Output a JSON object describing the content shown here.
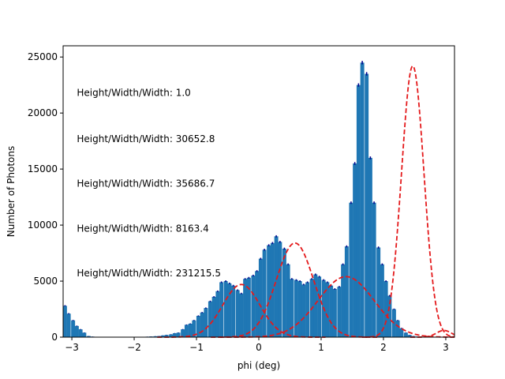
{
  "chart_data": {
    "type": "bar",
    "title": "",
    "xlabel": "phi (deg)",
    "ylabel": "Number of Photons",
    "xlim": [
      -3.14,
      3.14
    ],
    "ylim": [
      0,
      26000
    ],
    "xticks": [
      -3,
      -2,
      -1,
      0,
      1,
      2,
      3
    ],
    "yticks": [
      0,
      5000,
      10000,
      15000,
      20000,
      25000
    ],
    "xtick_labels": [
      "−3",
      "−2",
      "−1",
      "0",
      "1",
      "2",
      "3"
    ],
    "ytick_labels": [
      "0",
      "5000",
      "10000",
      "15000",
      "20000",
      "25000"
    ],
    "grid": false,
    "bar_color": "#1f77b4",
    "errorbar_color": "#00008b",
    "fit_color": "#e41a1c",
    "histogram": {
      "bin_width": 0.0628,
      "bin_centers": [
        -3.11,
        -3.05,
        -2.98,
        -2.92,
        -2.86,
        -2.8,
        -2.73,
        -2.67,
        -2.61,
        -2.55,
        -2.48,
        -2.42,
        -2.36,
        -2.29,
        -2.23,
        -2.17,
        -2.1,
        -2.04,
        -1.98,
        -1.92,
        -1.85,
        -1.79,
        -1.73,
        -1.66,
        -1.6,
        -1.54,
        -1.48,
        -1.41,
        -1.35,
        -1.29,
        -1.22,
        -1.16,
        -1.1,
        -1.04,
        -0.97,
        -0.91,
        -0.85,
        -0.78,
        -0.72,
        -0.66,
        -0.6,
        -0.53,
        -0.47,
        -0.41,
        -0.34,
        -0.28,
        -0.22,
        -0.16,
        -0.09,
        -0.03,
        0.03,
        0.09,
        0.16,
        0.22,
        0.28,
        0.34,
        0.41,
        0.47,
        0.53,
        0.6,
        0.66,
        0.72,
        0.78,
        0.85,
        0.91,
        0.97,
        1.04,
        1.1,
        1.16,
        1.22,
        1.29,
        1.35,
        1.41,
        1.48,
        1.54,
        1.6,
        1.66,
        1.73,
        1.79,
        1.85,
        1.92,
        1.98,
        2.04,
        2.1,
        2.17,
        2.23,
        2.29,
        2.36,
        2.42,
        2.48,
        2.55,
        2.61,
        2.67,
        2.73,
        2.8,
        2.86,
        2.92,
        2.98,
        3.05,
        3.11
      ],
      "counts": [
        2800,
        2100,
        1500,
        1000,
        700,
        400,
        100,
        50,
        30,
        20,
        15,
        10,
        10,
        10,
        10,
        10,
        10,
        10,
        10,
        20,
        30,
        40,
        60,
        80,
        100,
        150,
        200,
        250,
        350,
        400,
        700,
        1100,
        1200,
        1500,
        1900,
        2200,
        2600,
        3200,
        3600,
        4100,
        4900,
        5000,
        4800,
        4600,
        4200,
        3900,
        5200,
        5300,
        5500,
        5900,
        7000,
        7800,
        8200,
        8400,
        9000,
        8500,
        7900,
        6500,
        5200,
        5100,
        5000,
        4700,
        4900,
        5200,
        5600,
        5400,
        5100,
        4900,
        4600,
        4300,
        4500,
        6500,
        8100,
        12000,
        15500,
        22500,
        24500,
        23500,
        16000,
        12000,
        8000,
        6500,
        5000,
        3700,
        2500,
        1500,
        800,
        400,
        200,
        100,
        60,
        40,
        30,
        20,
        15,
        10,
        10,
        10,
        10,
        10
      ]
    },
    "fits": [
      {
        "center": -0.28,
        "sigma": 0.3,
        "amplitude": 4700
      },
      {
        "center": 0.58,
        "sigma": 0.3,
        "amplitude": 8400
      },
      {
        "center": 1.4,
        "sigma": 0.45,
        "amplitude": 5400
      },
      {
        "center": 2.47,
        "sigma": 0.18,
        "amplitude": 24200
      },
      {
        "center": 2.97,
        "sigma": 0.12,
        "amplitude": 600
      }
    ],
    "annotations": [
      {
        "text": "Height/Width/Width: 1.0",
        "y": 21800
      },
      {
        "text": "Height/Width/Width: 30652.8",
        "y": 17700
      },
      {
        "text": "Height/Width/Width: 35686.7",
        "y": 13700
      },
      {
        "text": "Height/Width/Width: 8163.4",
        "y": 9700
      },
      {
        "text": "Height/Width/Width: 231215.5",
        "y": 5700
      }
    ],
    "annotation_x": -2.92
  }
}
